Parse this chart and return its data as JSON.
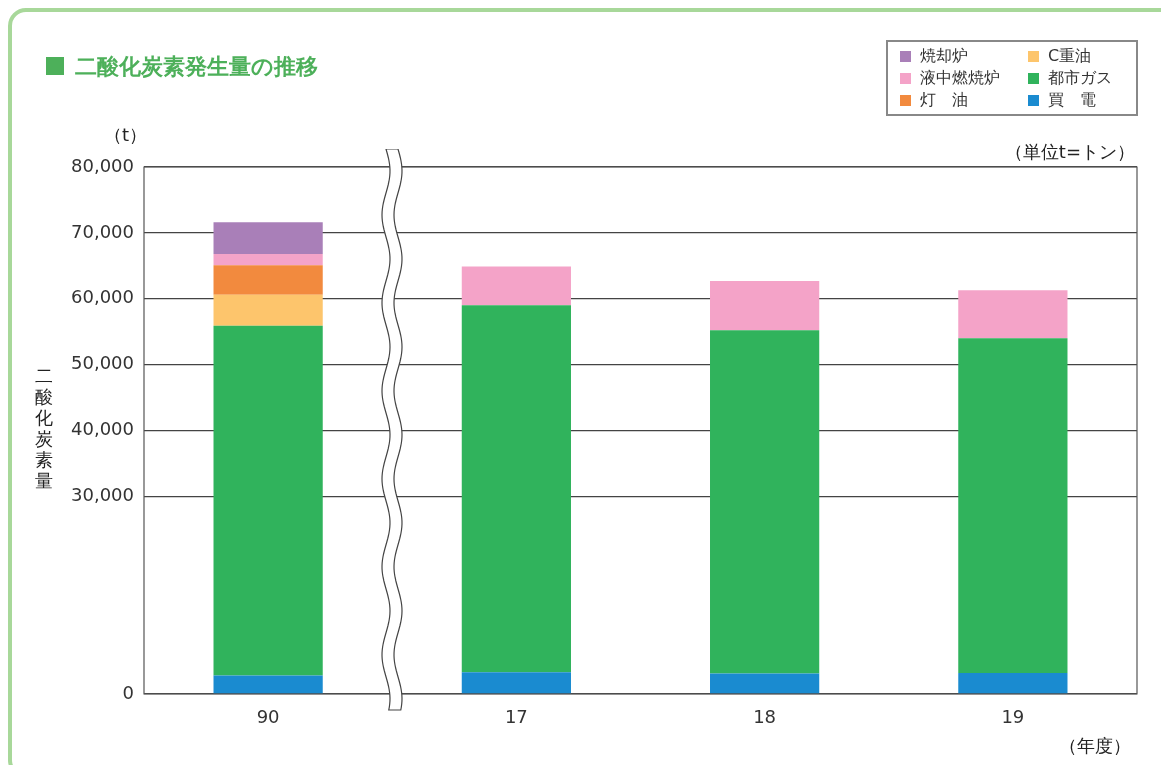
{
  "chart_data": {
    "type": "bar",
    "title": "二酸化炭素発生量の推移",
    "ylabel": "二酸化炭素量",
    "xlabel": "（年度）",
    "annotations": [
      "（t）",
      "（単位t=トン）"
    ],
    "categories": [
      "90",
      "17",
      "18",
      "19"
    ],
    "stacked": true,
    "series": [
      {
        "name": "買　電",
        "color": "#1a8bd0",
        "values": [
          2800,
          3300,
          3100,
          3200
        ]
      },
      {
        "name": "都市ガス",
        "color": "#30b35c",
        "values": [
          53100,
          55700,
          52100,
          50800
        ]
      },
      {
        "name": "C重油",
        "color": "#fdc56c",
        "values": [
          4700,
          null,
          null,
          null
        ]
      },
      {
        "name": "灯　油",
        "color": "#f28a3e",
        "values": [
          4500,
          null,
          null,
          null
        ]
      },
      {
        "name": "液中燃焼炉",
        "color": "#f4a3c8",
        "values": [
          1700,
          5900,
          7500,
          7300
        ]
      },
      {
        "name": "焼却炉",
        "color": "#a97fb8",
        "values": [
          4800,
          null,
          null,
          null
        ]
      }
    ],
    "ylim": [
      0,
      80000
    ],
    "yticks": [
      0,
      {
        "value": 30000,
        "label": "30,000"
      },
      {
        "value": 40000,
        "label": "40,000"
      },
      {
        "value": 50000,
        "label": "50,000"
      },
      {
        "value": 60000,
        "label": "60,000"
      },
      {
        "value": 70000,
        "label": "70,000"
      },
      {
        "value": 80000,
        "label": "80,000"
      }
    ],
    "grid": "y",
    "legend": "top right"
  }
}
